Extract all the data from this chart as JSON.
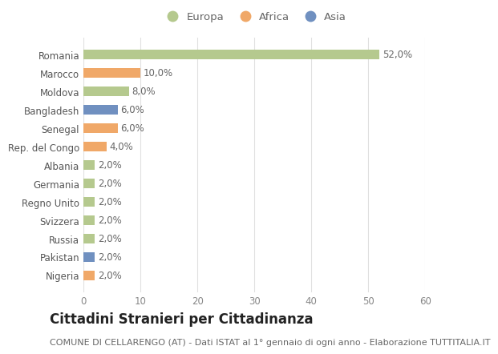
{
  "countries": [
    "Romania",
    "Marocco",
    "Moldova",
    "Bangladesh",
    "Senegal",
    "Rep. del Congo",
    "Albania",
    "Germania",
    "Regno Unito",
    "Svizzera",
    "Russia",
    "Pakistan",
    "Nigeria"
  ],
  "values": [
    52.0,
    10.0,
    8.0,
    6.0,
    6.0,
    4.0,
    2.0,
    2.0,
    2.0,
    2.0,
    2.0,
    2.0,
    2.0
  ],
  "continents": [
    "Europa",
    "Africa",
    "Europa",
    "Asia",
    "Africa",
    "Africa",
    "Europa",
    "Europa",
    "Europa",
    "Europa",
    "Europa",
    "Asia",
    "Africa"
  ],
  "colors": {
    "Europa": "#b5c98e",
    "Africa": "#f0a868",
    "Asia": "#7090c0"
  },
  "legend_labels": [
    "Europa",
    "Africa",
    "Asia"
  ],
  "legend_colors": [
    "#b5c98e",
    "#f0a868",
    "#7090c0"
  ],
  "title": "Cittadini Stranieri per Cittadinanza",
  "subtitle": "COMUNE DI CELLARENGO (AT) - Dati ISTAT al 1° gennaio di ogni anno - Elaborazione TUTTITALIA.IT",
  "xlim": [
    0,
    60
  ],
  "xticks": [
    0,
    10,
    20,
    30,
    40,
    50,
    60
  ],
  "background_color": "#ffffff",
  "grid_color": "#e0e0e0",
  "bar_height": 0.55,
  "title_fontsize": 12,
  "subtitle_fontsize": 8,
  "label_fontsize": 8.5,
  "tick_fontsize": 8.5,
  "legend_fontsize": 9.5
}
